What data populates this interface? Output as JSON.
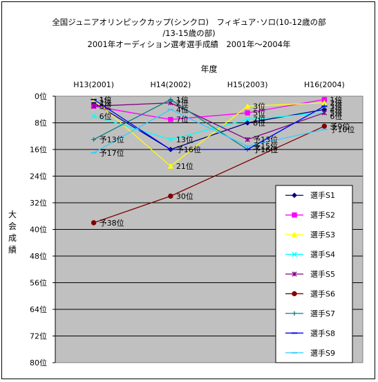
{
  "title_lines": [
    "全国ジュニアオリンピックカップ(シンクロ)　フィギュア･ソロ(10-12歳の部",
    "/13-15歳の部)",
    "2001年オーディション選考選手成績　2001年～2004年"
  ],
  "chart_data": {
    "type": "line",
    "title": "全国ジュニアオリンピックカップ(シンクロ)　フィギュア･ソロ(10-12歳の部/13-15歳の部) 2001年オーディション選考選手成績　2001年～2004年",
    "xlabel": "年度",
    "ylabel": "大会成績",
    "categories": [
      "H13(2001)",
      "H14(2002)",
      "H15(2003)",
      "H16(2004)"
    ],
    "ylim": [
      0,
      80
    ],
    "y_reversed": true,
    "y_ticks": [
      "0位",
      "8位",
      "16位",
      "24位",
      "32位",
      "40位",
      "48位",
      "56位",
      "64位",
      "72位",
      "80位"
    ],
    "grid": true,
    "legend_position": "right-bottom",
    "series": [
      {
        "name": "選手S1",
        "color": "#000080",
        "marker": "diamond",
        "values": [
          2,
          16,
          8,
          4
        ],
        "labels": [
          "2位",
          "",
          "8位",
          "4位"
        ]
      },
      {
        "name": "選手S2",
        "color": "#ff00ff",
        "marker": "square",
        "values": [
          3,
          7,
          5,
          1
        ],
        "labels": [
          "",
          "7位",
          "5位",
          "1位"
        ]
      },
      {
        "name": "選手S3",
        "color": "#ffff00",
        "marker": "triangle",
        "values": [
          1,
          21,
          3,
          2
        ],
        "labels": [
          "1位",
          "21位",
          "3位",
          "2位"
        ]
      },
      {
        "name": "選手S4",
        "color": "#00ffff",
        "marker": "x",
        "values": [
          6,
          13,
          7,
          5
        ],
        "labels": [
          "",
          "",
          "7位",
          "5位"
        ]
      },
      {
        "name": "選手S5",
        "color": "#800080",
        "marker": "star",
        "values": [
          3,
          2,
          13,
          5
        ],
        "labels": [
          "3位",
          "2位",
          "予13位",
          ""
        ]
      },
      {
        "name": "選手S6",
        "color": "#800000",
        "marker": "circle",
        "values": [
          38,
          30,
          null,
          9
        ],
        "labels": [
          "予38位",
          "30位",
          "",
          "予9位"
        ]
      },
      {
        "name": "選手S7",
        "color": "#008080",
        "marker": "plus",
        "values": [
          13,
          1,
          16,
          3
        ],
        "labels": [
          "予13位",
          "1位",
          "予16位",
          "3位"
        ]
      },
      {
        "name": "選手S8",
        "color": "#0000ff",
        "marker": "dash",
        "values": [
          1,
          16,
          16,
          3
        ],
        "labels": [
          "1位",
          "予16位",
          "予16位",
          ""
        ]
      },
      {
        "name": "選手S9",
        "color": "#33ccff",
        "marker": "dash",
        "values": [
          17,
          4,
          15,
          10
        ],
        "labels": [
          "予17位",
          "4位",
          "予15位",
          "予10位"
        ]
      }
    ],
    "extra_labels": [
      {
        "x": 0,
        "y": 6,
        "text": "6位"
      },
      {
        "x": 1,
        "y": 13,
        "text": "13位"
      },
      {
        "x": 3,
        "y": 6,
        "text": "6位"
      }
    ]
  }
}
